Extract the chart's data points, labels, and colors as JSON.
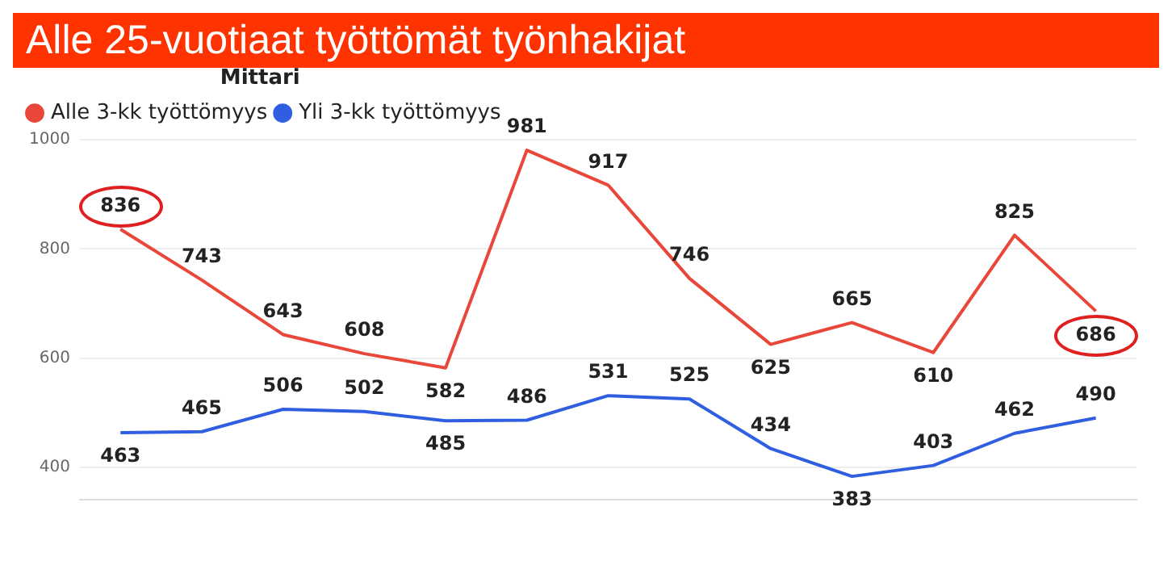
{
  "chart_data": {
    "type": "line",
    "title": "Alle 25-vuotiaat työttömät työnhakijat",
    "legend_title": "Mittari",
    "legend": "top left",
    "categories": [
      null,
      null,
      null,
      null,
      null,
      null,
      null,
      null,
      null,
      null,
      null,
      null,
      null
    ],
    "series": [
      {
        "name": "Alle 3-kk työttömyys",
        "color": "#e8473a",
        "values": [
          836,
          743,
          643,
          608,
          582,
          981,
          917,
          746,
          625,
          665,
          610,
          825,
          686
        ]
      },
      {
        "name": "Yli 3-kk työttömyys",
        "color": "#2f5fe0",
        "values": [
          463,
          465,
          506,
          502,
          485,
          486,
          531,
          525,
          434,
          383,
          403,
          462,
          490
        ]
      }
    ],
    "ylim": [
      340,
      1000
    ],
    "yticks": [
      400,
      600,
      800,
      1000
    ],
    "grid": "y",
    "marker": "none",
    "line_style": "solid",
    "data_labels": true
  }
}
